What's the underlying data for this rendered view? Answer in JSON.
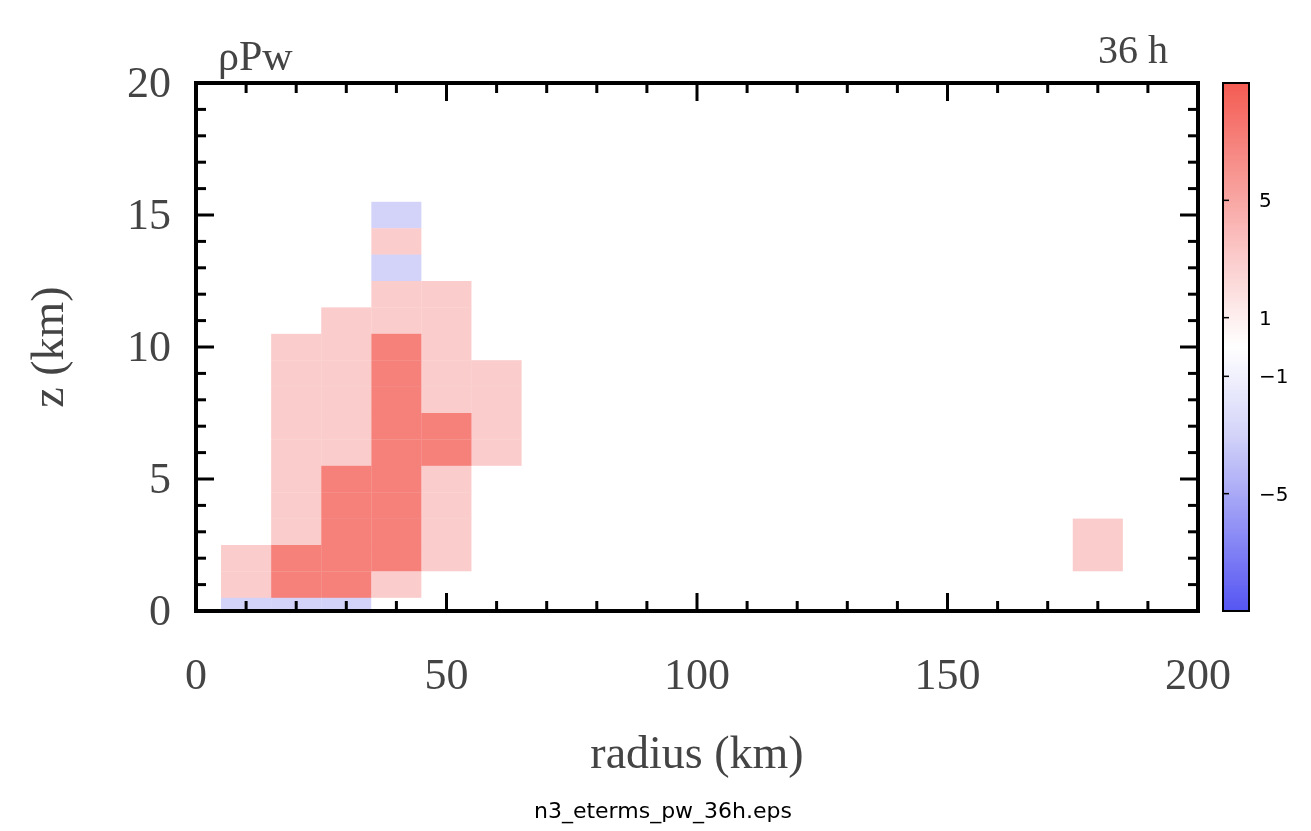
{
  "chart_data": {
    "type": "heatmap",
    "title": "ρPw",
    "subtitle": "36 h",
    "xlabel": "radius (km)",
    "ylabel": "z (km)",
    "annotations": [
      "n3_eterms_pw_36h.eps"
    ],
    "categories": [
      "0",
      null,
      null,
      null,
      null,
      "50",
      null,
      null,
      null,
      null,
      "100",
      null,
      null,
      null,
      null,
      "150",
      null,
      null,
      null,
      null,
      "200"
    ],
    "y_categories": [
      "20",
      null,
      null,
      null,
      null,
      "15",
      null,
      null,
      null,
      null,
      "10",
      null,
      null,
      null,
      null,
      "5",
      null,
      null,
      null,
      null,
      "0"
    ],
    "clim": [
      -9,
      9
    ],
    "cticks": [
      {
        "value": -5,
        "label": "−5"
      },
      {
        "value": -1,
        "label": "−1"
      },
      1,
      5
    ],
    "colors": [
      "#7f7ff5",
      "#d3d3f9",
      "#ffffff",
      "#fbcccc",
      "#f6817b"
    ],
    "cells": [
      [
        0,
        0,
        0,
        0,
        0,
        0,
        0,
        0,
        0,
        0,
        0,
        0,
        0,
        0,
        0,
        0,
        0,
        0,
        0,
        0,
        0
      ],
      [
        0,
        0,
        0,
        0,
        0,
        0,
        0,
        0,
        0,
        0,
        0,
        0,
        0,
        0,
        0,
        0,
        0,
        0,
        0,
        0,
        0
      ],
      [
        0,
        0,
        0,
        0,
        0,
        0,
        0,
        0,
        0,
        0,
        0,
        0,
        0,
        0,
        0,
        0,
        0,
        0,
        0,
        0,
        0
      ],
      [
        0,
        0,
        0,
        0,
        0,
        0,
        0,
        0,
        0,
        0,
        0,
        0,
        0,
        0,
        0,
        0,
        0,
        0,
        0,
        0,
        0
      ],
      [
        0,
        0,
        0,
        0,
        0,
        0,
        0,
        0,
        0,
        0,
        0,
        0,
        0,
        0,
        0,
        0,
        0,
        0,
        0,
        0,
        0
      ],
      [
        0,
        0,
        0,
        0,
        -3,
        0,
        0,
        0,
        0,
        0,
        0,
        0,
        0,
        0,
        0,
        0,
        0,
        0,
        0,
        0,
        0
      ],
      [
        0,
        0,
        0,
        0,
        3,
        0,
        0,
        0,
        0,
        0,
        0,
        0,
        0,
        0,
        0,
        0,
        0,
        0,
        0,
        0,
        0
      ],
      [
        0,
        0,
        0,
        0,
        -3,
        0,
        0,
        0,
        0,
        0,
        0,
        0,
        0,
        0,
        0,
        0,
        0,
        0,
        0,
        0,
        0
      ],
      [
        0,
        0,
        0,
        0,
        3,
        3,
        0,
        0,
        0,
        0,
        0,
        0,
        0,
        0,
        0,
        0,
        0,
        0,
        0,
        0,
        0
      ],
      [
        0,
        0,
        0,
        3,
        3,
        3,
        0,
        0,
        0,
        0,
        0,
        0,
        0,
        0,
        0,
        0,
        0,
        0,
        0,
        0,
        0
      ],
      [
        0,
        0,
        3,
        3,
        7,
        3,
        0,
        0,
        0,
        0,
        0,
        0,
        0,
        0,
        0,
        0,
        0,
        0,
        0,
        0,
        0
      ],
      [
        0,
        0,
        3,
        3,
        7,
        3,
        3,
        0,
        0,
        0,
        0,
        0,
        0,
        0,
        0,
        0,
        0,
        0,
        0,
        0,
        0
      ],
      [
        0,
        0,
        3,
        3,
        7,
        3,
        3,
        0,
        0,
        0,
        0,
        0,
        0,
        0,
        0,
        0,
        0,
        0,
        0,
        0,
        0
      ],
      [
        0,
        0,
        3,
        3,
        7,
        7,
        3,
        0,
        0,
        0,
        0,
        0,
        0,
        0,
        0,
        0,
        0,
        0,
        0,
        0,
        0
      ],
      [
        0,
        0,
        3,
        3,
        7,
        7,
        3,
        0,
        0,
        0,
        0,
        0,
        0,
        0,
        0,
        0,
        0,
        0,
        0,
        0,
        0
      ],
      [
        0,
        0,
        3,
        7,
        7,
        3,
        0,
        0,
        0,
        0,
        0,
        0,
        0,
        0,
        0,
        0,
        0,
        0,
        0,
        0,
        0
      ],
      [
        0,
        0,
        3,
        7,
        7,
        3,
        0,
        0,
        0,
        0,
        0,
        0,
        0,
        0,
        0,
        0,
        0,
        0,
        0,
        0,
        0
      ],
      [
        0,
        0,
        3,
        7,
        7,
        3,
        0,
        0,
        0,
        0,
        0,
        0,
        0,
        0,
        0,
        0,
        0,
        0,
        3,
        0,
        0
      ],
      [
        0,
        3,
        7,
        7,
        7,
        3,
        0,
        0,
        0,
        0,
        0,
        0,
        0,
        0,
        0,
        0,
        0,
        0,
        3,
        0,
        0
      ],
      [
        0,
        3,
        7,
        7,
        3,
        0,
        0,
        0,
        0,
        0,
        0,
        0,
        0,
        0,
        0,
        0,
        0,
        0,
        0,
        0,
        0
      ],
      [
        0,
        -3,
        -3,
        -3,
        0,
        0,
        0,
        0,
        0,
        0,
        0,
        0,
        0,
        0,
        0,
        0,
        0,
        0,
        0,
        0,
        0
      ]
    ]
  }
}
